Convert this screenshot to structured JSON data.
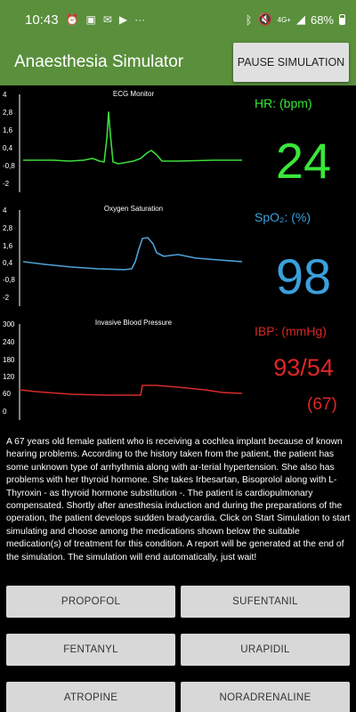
{
  "status_bar": {
    "time": "10:43",
    "signal_label": "4G+",
    "battery": "68%",
    "icons": [
      "alarm-icon",
      "image-icon",
      "mail-icon",
      "play-store-icon",
      "more-dots-icon",
      "bluetooth-icon",
      "mute-icon",
      "wifi-icon",
      "signal-icon",
      "battery-icon"
    ]
  },
  "app": {
    "title": "Anaesthesia Simulator",
    "pause_label": "PAUSE SIMULATION",
    "accent": "#5a8f3c"
  },
  "charts": {
    "ecg": {
      "title": "ECG Monitor",
      "ticks": [
        "4",
        "2,8",
        "1,6",
        "0,4",
        "-0,8",
        "-2"
      ],
      "color": "#3cdc3c"
    },
    "spo2": {
      "title": "Oxygen Saturation",
      "ticks": [
        "4",
        "2,8",
        "1,6",
        "0,4",
        "-0,8",
        "-2"
      ],
      "color": "#4fa3d6"
    },
    "ibp": {
      "title": "Invasive Blood Pressure",
      "ticks": [
        "300",
        "240",
        "180",
        "120",
        "60",
        "0"
      ],
      "color": "#d62b2b"
    }
  },
  "readouts": {
    "hr_label": "HR: (bpm)",
    "hr_value": "24",
    "hr_color": "#39e639",
    "spo2_label": "SpO₂: (%)",
    "spo2_value": "98",
    "spo2_color": "#3aa0dc",
    "ibp_label": "IBP: (mmHg)",
    "ibp_value": "93/54",
    "ibp_mean": "(67)",
    "ibp_color": "#e02424"
  },
  "description": "A 67 years old female patient who is receiving a cochlea implant because of known hearing problems. According to the history taken from the patient, the patient has some unknown type of arrhythmia along with ar-terial hypertension. She also has problems with her thyroid hormone. She takes Irbesartan, Bisoprolol along with L-Thyroxin - as thyroid hormone substitution -. The patient is cardiopulmonary compensated. Shortly after anesthesia induction and during the preparations of the operation, the patient develops sudden bradycardia. Click on Start Simulation to start simulating and choose among the medications shown below the suitable medication(s) of treatment for this condition. A report will be generated at the end of the simulation. The simulation will end automatically, just wait!",
  "medications": {
    "propofol": "PROPOFOL",
    "sufentanil": "SUFENTANIL",
    "fentanyl": "FENTANYL",
    "urapidil": "URAPIDIL",
    "atropine": "ATROPINE",
    "noradrenaline": "NORADRENALINE"
  }
}
